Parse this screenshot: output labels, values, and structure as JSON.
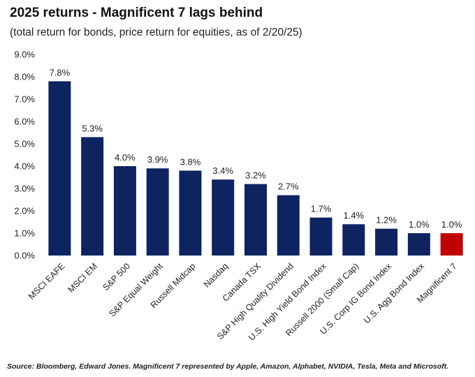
{
  "chart_data": {
    "type": "bar",
    "title": "2025 returns - Magnificent 7 lags behind",
    "subtitle": "(total return for bonds, price return for equities, as of 2/20/25)",
    "categories": [
      "MSCI EAFE",
      "MSCI EM",
      "S&P 500",
      "S&P Equal Weight",
      "Russell Midcap",
      "Nasdaq",
      "Canada TSX",
      "S&P High Quality Dividend",
      "U.S. High Yield Bond Index",
      "Russell 2000 (Small Cap)",
      "U.S. Corp IG Bond Index",
      "U.S. Agg Bond Index",
      "Magnificent 7"
    ],
    "values": [
      7.8,
      5.3,
      4.0,
      3.9,
      3.8,
      3.4,
      3.2,
      2.7,
      1.7,
      1.4,
      1.2,
      1.0,
      1.0
    ],
    "data_labels": [
      "7.8%",
      "5.3%",
      "4.0%",
      "3.9%",
      "3.8%",
      "3.4%",
      "3.2%",
      "2.7%",
      "1.7%",
      "1.4%",
      "1.2%",
      "1.0%",
      "1.0%"
    ],
    "yticks": [
      "0.0%",
      "1.0%",
      "2.0%",
      "3.0%",
      "4.0%",
      "5.0%",
      "6.0%",
      "7.0%",
      "8.0%",
      "9.0%"
    ],
    "ylim": [
      0,
      9
    ],
    "grid": false,
    "bar_color": "#0d2461",
    "highlight_color": "#c00000",
    "highlight_category": "Magnificent 7"
  },
  "footnote": "Source: Bloomberg, Edward Jones. Magnificent 7 represented by Apple, Amazon, Alphabet, NVIDIA, Tesla, Meta and Microsoft."
}
